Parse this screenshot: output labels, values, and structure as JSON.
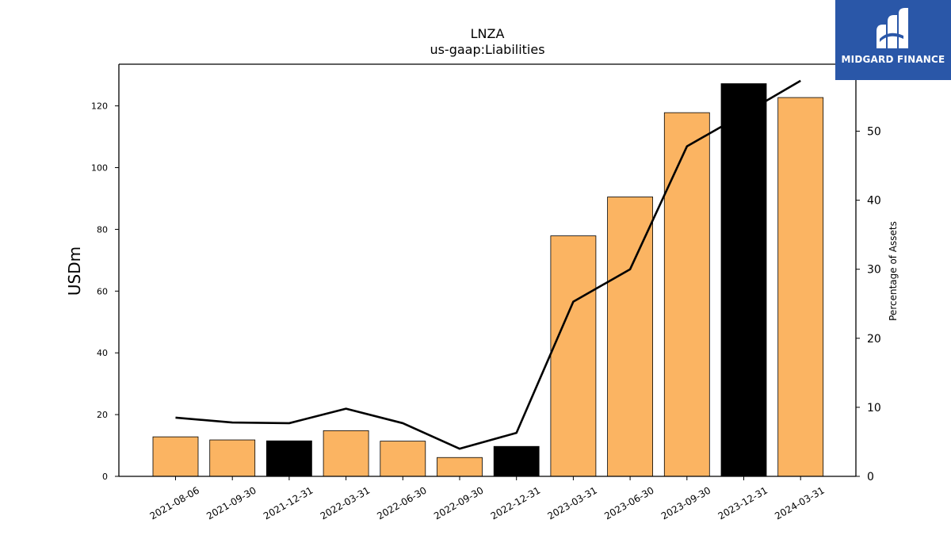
{
  "brand": {
    "name": "MIDGARD FINANCE",
    "bg_color": "#2a57a8"
  },
  "chart_data": {
    "type": "bar",
    "title": "LNZA",
    "subtitle": "us-gaap:Liabilities",
    "ylabel": "USDm",
    "y2label": "Percentage of Assets",
    "categories": [
      "2021-08-06",
      "2021-09-30",
      "2021-12-31",
      "2022-03-31",
      "2022-06-30",
      "2022-09-30",
      "2022-12-31",
      "2023-03-31",
      "2023-06-30",
      "2023-09-30",
      "2023-12-31",
      "2024-03-31"
    ],
    "series": [
      {
        "type": "bar",
        "values": [
          12.8,
          11.8,
          11.5,
          14.8,
          11.4,
          6.1,
          9.7,
          77.9,
          90.5,
          117.8,
          127.2,
          122.7
        ],
        "colors": [
          "#fbb462",
          "#fbb462",
          "#000000",
          "#fbb462",
          "#fbb462",
          "#fbb462",
          "#000000",
          "#fbb462",
          "#fbb462",
          "#fbb462",
          "#000000",
          "#fbb462"
        ]
      },
      {
        "type": "line",
        "axis": "right",
        "values": [
          8.5,
          7.8,
          7.7,
          9.8,
          7.7,
          4.0,
          6.3,
          25.3,
          30.0,
          47.8,
          52.5,
          57.3
        ],
        "color": "#000000"
      }
    ],
    "ylim": [
      0,
      133.5
    ],
    "yticks": [
      0,
      20,
      40,
      60,
      80,
      100,
      120
    ],
    "y2lim": [
      0,
      59.7
    ],
    "y2ticks": [
      0,
      10,
      20,
      30,
      40,
      50
    ],
    "grid": false,
    "legend": "none"
  }
}
